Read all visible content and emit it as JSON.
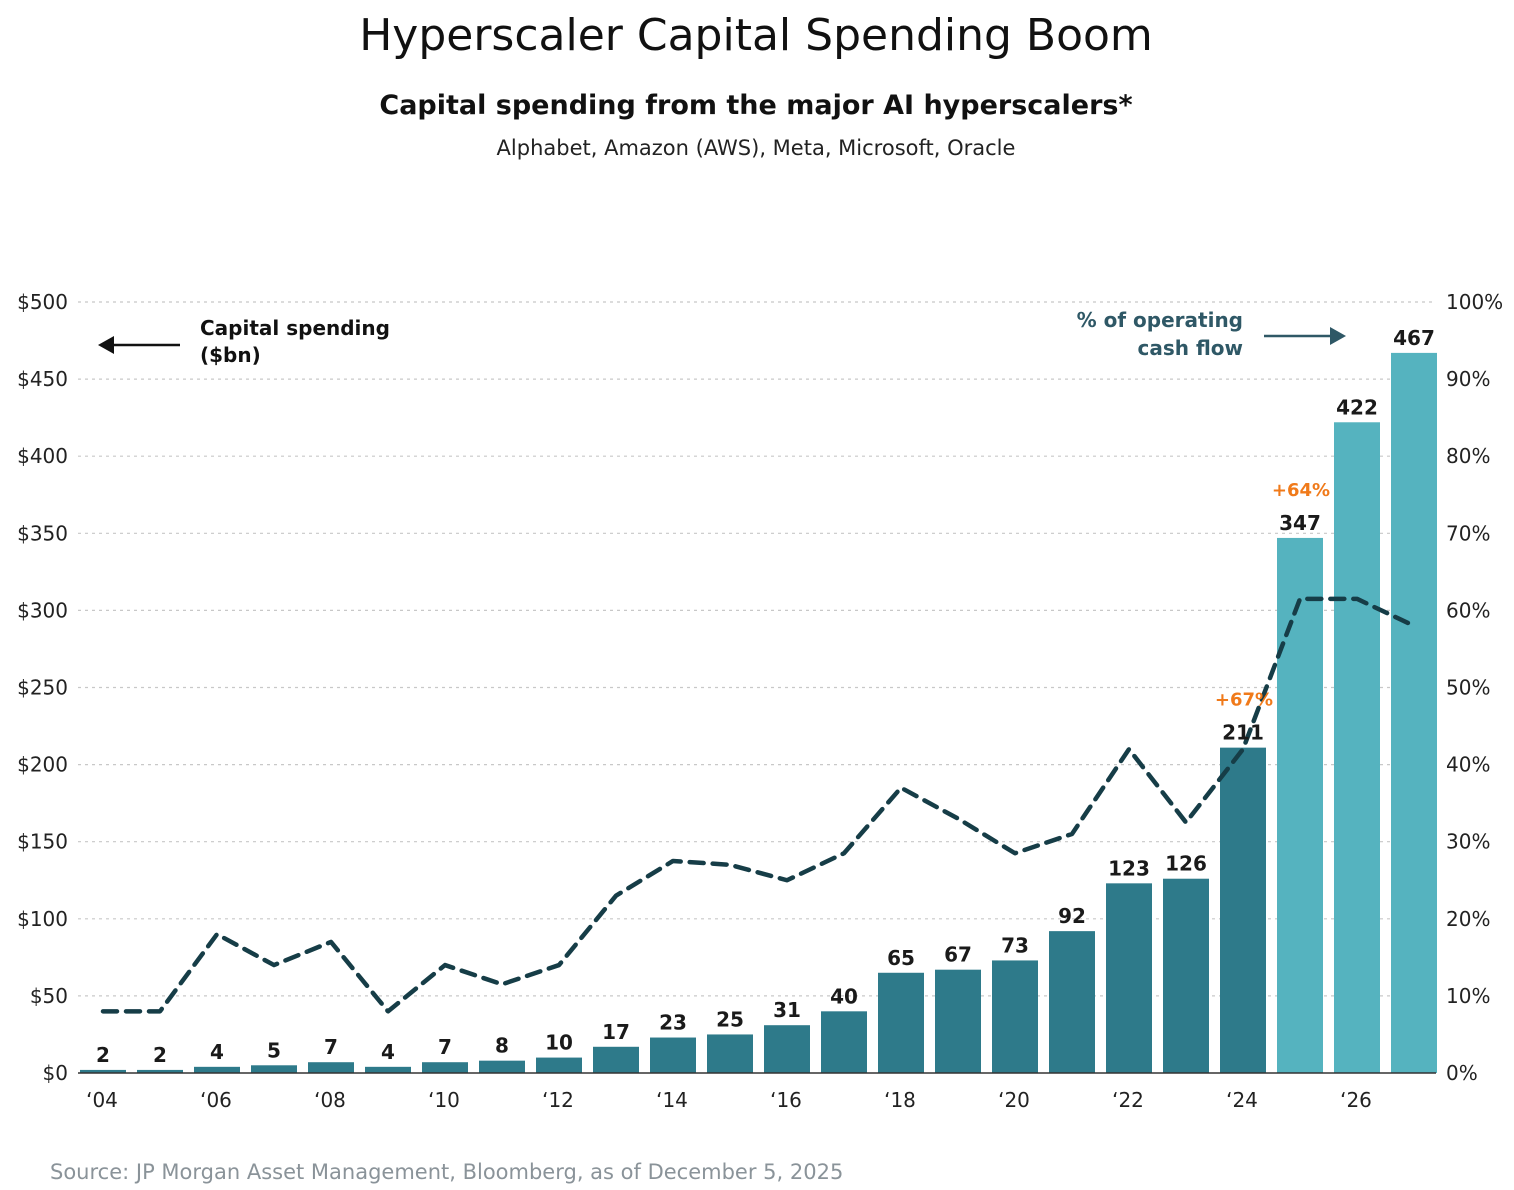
{
  "title": "Hyperscaler Capital Spending Boom",
  "subtitle": "Capital spending from the major AI hyperscalers*",
  "companies": "Alphabet, Amazon (AWS), Meta, Microsoft, Oracle",
  "source": "Source: JP Morgan Asset Management, Bloomberg, as of December 5, 2025",
  "annotations": {
    "left_line1": "Capital spending",
    "left_line2": "($bn)",
    "right_line1": "% of operating",
    "right_line2": "cash flow"
  },
  "colors": {
    "bar_historical": "#2e7a8a",
    "bar_forecast": "#55b3bf",
    "line": "#163d47",
    "growth": "#f07a1a",
    "right_annotation": "#2f5866"
  },
  "chart_data": {
    "type": "bar",
    "x": [
      2004,
      2005,
      2006,
      2007,
      2008,
      2009,
      2010,
      2011,
      2012,
      2013,
      2014,
      2015,
      2016,
      2017,
      2018,
      2019,
      2020,
      2021,
      2022,
      2023,
      2024,
      2025,
      2026,
      2027
    ],
    "x_tick_labels": [
      "‘04",
      "‘06",
      "‘08",
      "‘10",
      "‘12",
      "‘14",
      "‘16",
      "‘18",
      "‘20",
      "‘22",
      "‘24",
      "‘26"
    ],
    "x_tick_years": [
      2004,
      2006,
      2008,
      2010,
      2012,
      2014,
      2016,
      2018,
      2020,
      2022,
      2024,
      2026
    ],
    "series": [
      {
        "name": "Capital spending ($bn)",
        "type": "bar",
        "axis": "left",
        "values": [
          2,
          2,
          4,
          5,
          7,
          4,
          7,
          8,
          10,
          17,
          23,
          25,
          31,
          40,
          65,
          67,
          73,
          92,
          123,
          126,
          211,
          347,
          422,
          467
        ],
        "forecast_from_index": 21
      },
      {
        "name": "% of operating cash flow",
        "type": "line",
        "axis": "right",
        "values": [
          8,
          8,
          18,
          14,
          17,
          8,
          14,
          11.5,
          14,
          23,
          27.5,
          27,
          25,
          28.5,
          37,
          33,
          28.5,
          31,
          42,
          32.5,
          42,
          61.5,
          61.5,
          58
        ]
      }
    ],
    "growth_labels": [
      {
        "year": 2024,
        "text": "+67%"
      },
      {
        "year": 2025,
        "text": "+64%"
      }
    ],
    "left_axis": {
      "ylim": [
        0,
        500
      ],
      "tick_labels": [
        "$0",
        "$50",
        "$100",
        "$150",
        "$200",
        "$250",
        "$300",
        "$350",
        "$400",
        "$450",
        "$500"
      ]
    },
    "right_axis": {
      "ylim": [
        0,
        100
      ],
      "tick_labels": [
        "0%",
        "10%",
        "20%",
        "30%",
        "40%",
        "50%",
        "60%",
        "70%",
        "80%",
        "90%",
        "100%"
      ]
    },
    "grid": true
  }
}
